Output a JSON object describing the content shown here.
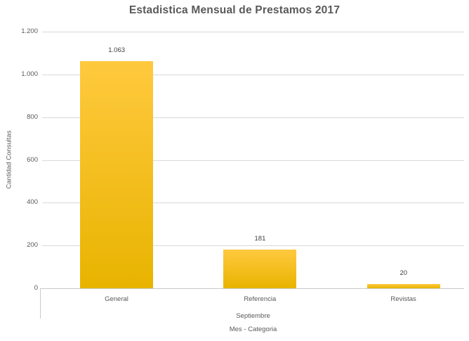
{
  "title": "Estadistica Mensual de Prestamos 2017",
  "chart_data": {
    "type": "bar",
    "categories": [
      "General",
      "Referencia",
      "Revistas"
    ],
    "values": [
      1063,
      181,
      20
    ],
    "data_labels": [
      "1.063",
      "181",
      "20"
    ],
    "group_label": "Septiembre",
    "title": "Estadistica Mensual de Prestamos 2017",
    "xlabel": "Mes - Categoria",
    "ylabel": "Cantidad Consultas",
    "ylim": [
      0,
      1200
    ],
    "ytick_interval": 200,
    "yticks": [
      "0",
      "200",
      "400",
      "600",
      "800",
      "1.000",
      "1.200"
    ],
    "grid": true,
    "legend": "none"
  },
  "colors": {
    "bar_gradient_top": "#FFC93E",
    "bar_gradient_bottom": "#E8B400",
    "gridline": "#D9D9D9",
    "axis_line": "#C9C9C9",
    "title_text": "#595959",
    "axis_text": "#595959",
    "data_label_text": "#404040"
  }
}
